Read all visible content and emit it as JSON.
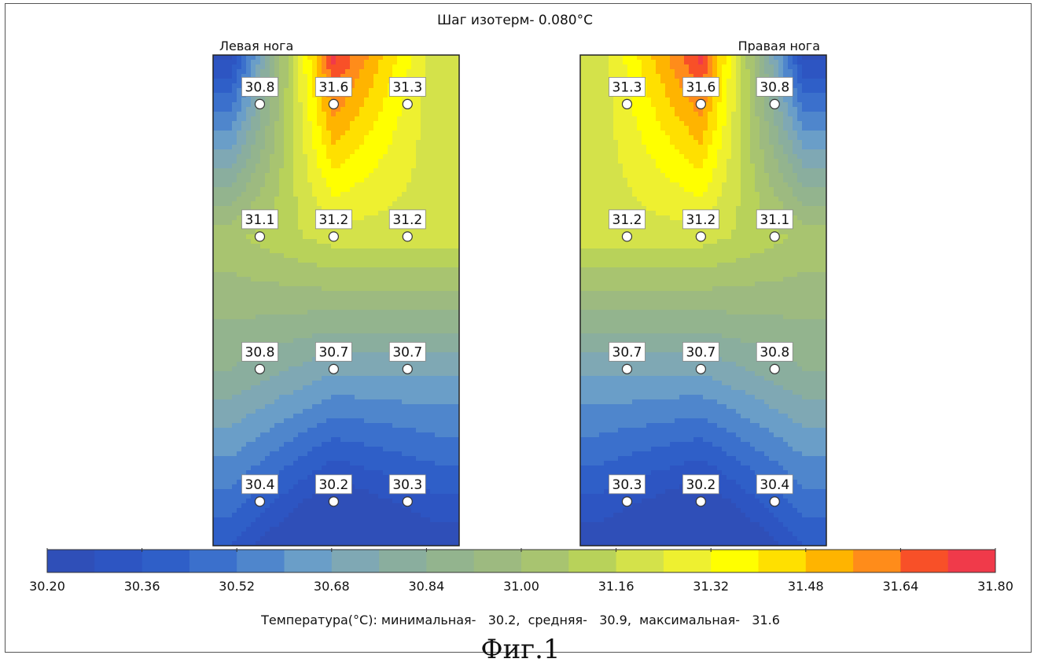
{
  "title": "Шаг изотерм- 0.080°C",
  "caption": "Фиг.1",
  "summary": "Температура(°С): минимальная-   30.2,  средняя-   30.9,  максимальная-   31.6",
  "chart_data": {
    "type": "heatmap",
    "isotherm_step": 0.08,
    "unit": "°C",
    "panels": [
      {
        "name": "Левая нога",
        "rows": [
          [
            "30.8",
            "31.6",
            "31.3"
          ],
          [
            "31.1",
            "31.2",
            "31.2"
          ],
          [
            "30.8",
            "30.7",
            "30.7"
          ],
          [
            "30.4",
            "30.2",
            "30.3"
          ]
        ]
      },
      {
        "name": "Правая нога",
        "rows": [
          [
            "31.3",
            "31.6",
            "30.8"
          ],
          [
            "31.2",
            "31.2",
            "31.1"
          ],
          [
            "30.7",
            "30.7",
            "30.8"
          ],
          [
            "30.3",
            "30.2",
            "30.4"
          ]
        ]
      }
    ],
    "colorbar": {
      "ticks": [
        "30.20",
        "30.36",
        "30.52",
        "30.68",
        "30.84",
        "31.00",
        "31.16",
        "31.32",
        "31.48",
        "31.64",
        "31.80"
      ],
      "min": 30.2,
      "max": 31.8,
      "colors": [
        "#2f4fb8",
        "#2d55c2",
        "#2f5fc8",
        "#3b70cc",
        "#4f86cc",
        "#6a9ec8",
        "#7fa8b4",
        "#8aae9e",
        "#93b48e",
        "#9dba80",
        "#a8c470",
        "#b8d25a",
        "#d4e24a",
        "#eef030",
        "#ffff00",
        "#ffe000",
        "#ffb400",
        "#ff8c1a",
        "#f85028",
        "#f03a4a"
      ]
    },
    "summary": {
      "min": 30.2,
      "mean": 30.9,
      "max": 31.6
    }
  }
}
